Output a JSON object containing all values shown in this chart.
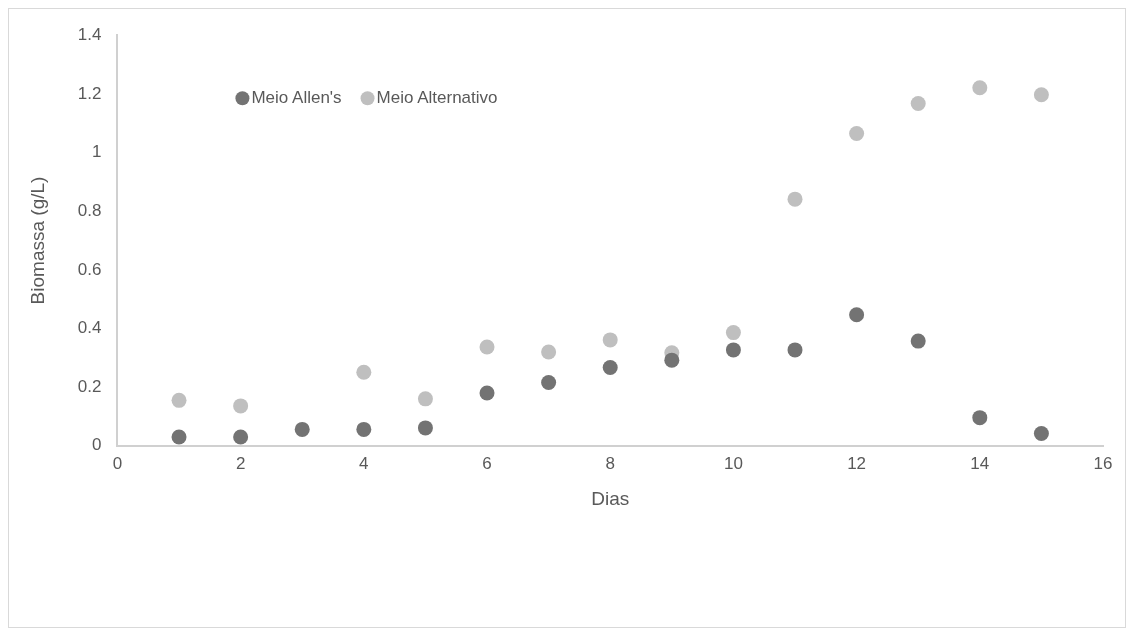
{
  "chart_data": {
    "type": "scatter",
    "xlabel": "Dias",
    "ylabel": "Biomassa (g/L)",
    "x": [
      1,
      2,
      3,
      4,
      5,
      6,
      7,
      8,
      9,
      10,
      11,
      12,
      13,
      14,
      15
    ],
    "series": [
      {
        "name": "Meio Allen's",
        "color": "#737373",
        "values": [
          0.03,
          0.03,
          0.056,
          0.056,
          0.061,
          0.18,
          0.216,
          0.267,
          0.292,
          0.327,
          0.327,
          0.447,
          0.357,
          0.096,
          0.042
        ]
      },
      {
        "name": "Meio Alternativo",
        "color": "#bfbfbf",
        "values": [
          0.155,
          0.136,
          null,
          0.251,
          0.16,
          0.337,
          0.32,
          0.361,
          0.317,
          0.386,
          0.841,
          1.065,
          1.167,
          1.221,
          1.197
        ]
      }
    ],
    "xlim": [
      0,
      16
    ],
    "xticks": [
      0,
      2,
      4,
      6,
      8,
      10,
      12,
      14,
      16
    ],
    "ylim": [
      0,
      1.4
    ],
    "yticks": [
      0,
      0.2,
      0.4,
      0.6,
      0.8,
      1,
      1.2,
      1.4
    ],
    "grid": false,
    "legend": "top left",
    "marker": "circle"
  }
}
